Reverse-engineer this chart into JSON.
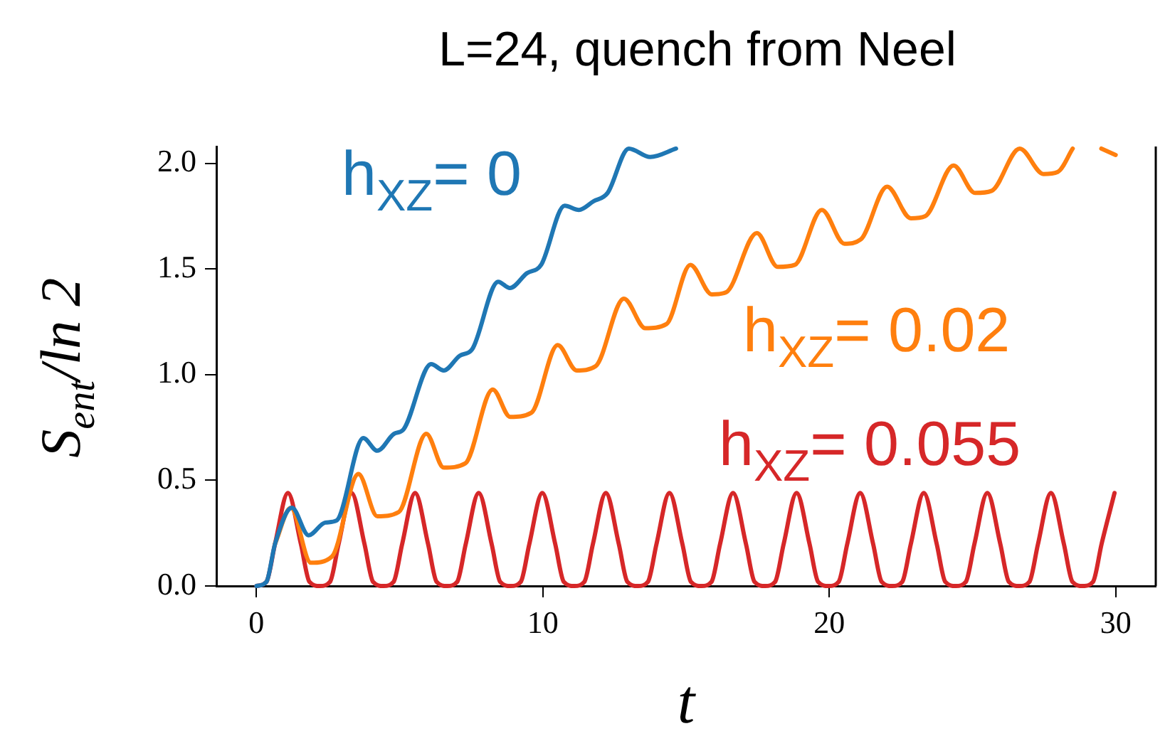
{
  "chart_data": {
    "type": "line",
    "title": "L=24, quench from Neel",
    "xlabel": "t",
    "ylabel": "S$_{ent}$/ln 2",
    "xlim": [
      -1.4,
      31.4
    ],
    "xticks": [
      0,
      10,
      20,
      30
    ],
    "ylim": [
      0,
      2.08
    ],
    "yticks": [
      {
        "value": 0,
        "label": "0.0"
      },
      {
        "value": 0.5,
        "label": "0.5"
      },
      {
        "value": 1,
        "label": "1.0"
      },
      {
        "value": 1.5,
        "label": "1.5"
      },
      {
        "value": 2,
        "label": "2.0"
      }
    ],
    "grid": false,
    "legend": false,
    "marker": "none",
    "line_style": "solid",
    "series": [
      {
        "name": "h$_{XZ}$= 0",
        "color": "#1f77b4",
        "x": [
          0,
          0.35,
          0.65,
          1.24,
          1.82,
          2.4,
          2.8,
          3.73,
          4.22,
          4.8,
          5.13,
          6.1,
          6.54,
          7.1,
          7.53,
          8.44,
          8.85,
          9.44,
          9.94,
          10.76,
          11.26,
          11.76,
          12.26,
          13.0,
          13.75,
          14.65
        ],
        "values": [
          0,
          0.02,
          0.2,
          0.37,
          0.24,
          0.3,
          0.31,
          0.7,
          0.64,
          0.72,
          0.74,
          1.05,
          1.02,
          1.09,
          1.12,
          1.44,
          1.41,
          1.48,
          1.52,
          1.8,
          1.78,
          1.82,
          1.86,
          2.07,
          2.03,
          2.07
        ]
      },
      {
        "name": "h$_{XZ}$= 0.02",
        "color": "#ff7f0e",
        "x": [
          0.65,
          1.2,
          1.9,
          2.64,
          3.56,
          4.22,
          4.97,
          5.93,
          6.54,
          7.29,
          8.25,
          8.86,
          9.6,
          10.52,
          11.18,
          11.84,
          12.83,
          13.58,
          14.32,
          15.15,
          15.9,
          16.4,
          17.47,
          18.2,
          18.8,
          19.74,
          20.53,
          21.1,
          22.02,
          22.85,
          23.35,
          24.34,
          25.09,
          25.67,
          26.65,
          27.48,
          27.98,
          28.5,
          29.0,
          29.5,
          30
        ],
        "values": [
          0.2,
          0.37,
          0.11,
          0.14,
          0.53,
          0.33,
          0.35,
          0.72,
          0.56,
          0.58,
          0.93,
          0.8,
          0.82,
          1.14,
          1.02,
          1.04,
          1.36,
          1.22,
          1.24,
          1.52,
          1.38,
          1.39,
          1.67,
          1.51,
          1.52,
          1.78,
          1.62,
          1.64,
          1.89,
          1.74,
          1.75,
          1.99,
          1.86,
          1.87,
          2.07,
          1.95,
          1.96,
          2.07,
          null,
          2.07,
          2.04
        ]
      },
      {
        "name": "h$_{XZ}$= 0.055",
        "color": "#d62728",
        "x": [
          0,
          0.35,
          0.65,
          1.1,
          1.55,
          1.85,
          2.22,
          2.57,
          2.87,
          3.32,
          3.77,
          4.07,
          4.44,
          4.79,
          5.09,
          5.54,
          5.99,
          6.29,
          6.66,
          7.01,
          7.31,
          7.76,
          8.21,
          8.51,
          8.88,
          9.23,
          9.53,
          9.98,
          10.43,
          10.73,
          11.1,
          11.45,
          11.75,
          12.2,
          12.65,
          12.95,
          13.32,
          13.67,
          13.97,
          14.42,
          14.87,
          15.17,
          15.54,
          15.89,
          16.19,
          16.64,
          17.09,
          17.39,
          17.76,
          18.11,
          18.41,
          18.86,
          19.31,
          19.61,
          19.98,
          20.33,
          20.63,
          21.08,
          21.53,
          21.83,
          22.2,
          22.55,
          22.85,
          23.3,
          23.75,
          24.05,
          24.42,
          24.77,
          25.07,
          25.52,
          25.97,
          26.27,
          26.64,
          26.99,
          27.29,
          27.74,
          28.19,
          28.49,
          28.86,
          29.21,
          29.51,
          29.96
        ],
        "values": [
          0,
          0.02,
          0.2,
          0.44,
          0.2,
          0.02,
          0,
          0.02,
          0.2,
          0.44,
          0.2,
          0.02,
          0,
          0.02,
          0.2,
          0.44,
          0.2,
          0.02,
          0,
          0.02,
          0.2,
          0.44,
          0.2,
          0.02,
          0,
          0.02,
          0.2,
          0.44,
          0.2,
          0.02,
          0,
          0.02,
          0.2,
          0.44,
          0.2,
          0.02,
          0,
          0.02,
          0.2,
          0.44,
          0.2,
          0.02,
          0,
          0.02,
          0.2,
          0.44,
          0.2,
          0.02,
          0,
          0.02,
          0.2,
          0.44,
          0.2,
          0.02,
          0,
          0.02,
          0.2,
          0.44,
          0.2,
          0.02,
          0,
          0.02,
          0.2,
          0.44,
          0.2,
          0.02,
          0,
          0.02,
          0.2,
          0.44,
          0.2,
          0.02,
          0,
          0.02,
          0.2,
          0.44,
          0.2,
          0.02,
          0,
          0.02,
          0.2,
          0.44
        ]
      }
    ]
  }
}
